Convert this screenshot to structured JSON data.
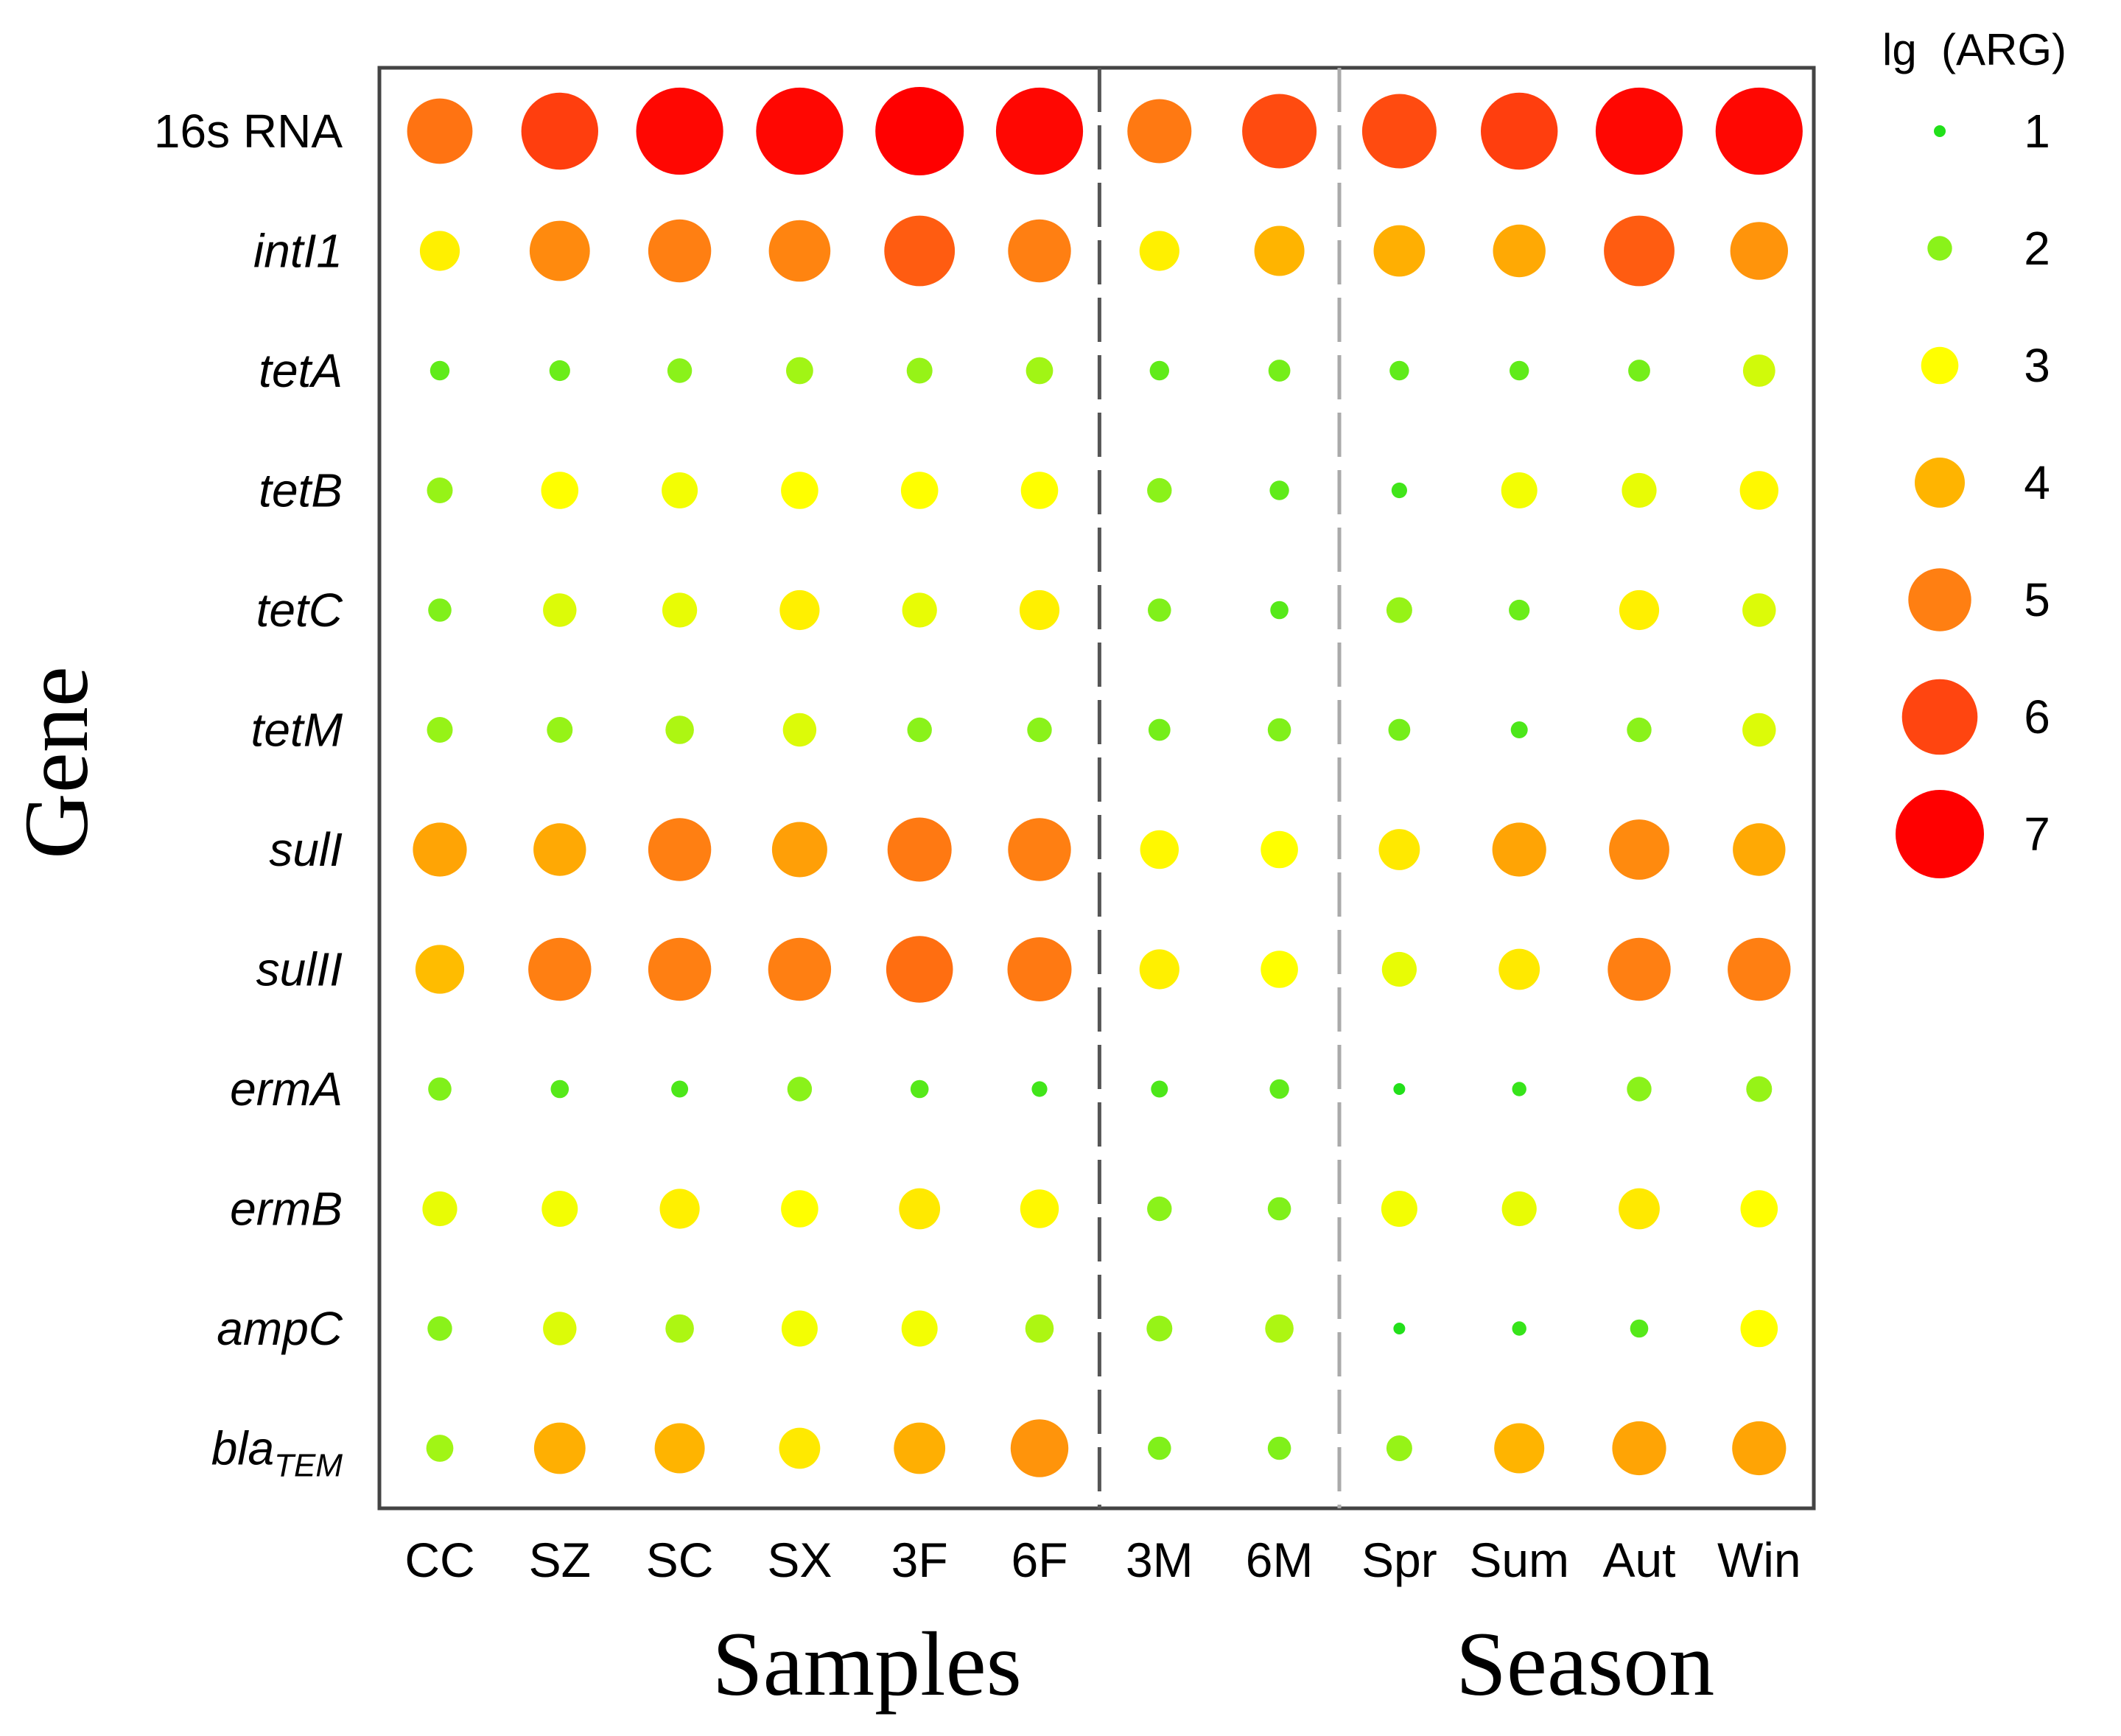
{
  "chart_data": {
    "type": "bubble-matrix",
    "title": "",
    "xlabel_groups": [
      "Samples",
      "Season"
    ],
    "ylabel": "Gene",
    "legend_title": "lg  (ARG)",
    "legend_levels": [
      1,
      2,
      3,
      4,
      5,
      6,
      7
    ],
    "color_scale": [
      "#22e01a",
      "#8af21a",
      "#ffff00",
      "#ffb400",
      "#ff7f12",
      "#ff4510",
      "#ff0000"
    ],
    "columns": [
      "CC",
      "SZ",
      "SC",
      "SX",
      "3F",
      "6F",
      "3M",
      "6M",
      "Spr",
      "Sum",
      "Aut",
      "Win"
    ],
    "rows": [
      {
        "gene": "16s RNA",
        "italic": false,
        "sub": "",
        "values": [
          5.2,
          6.1,
          6.9,
          6.9,
          7.0,
          6.9,
          5.1,
          5.9,
          5.9,
          6.1,
          6.9,
          6.9
        ]
      },
      {
        "gene": "intI1",
        "italic": true,
        "sub": "",
        "values": [
          3.2,
          4.8,
          5.0,
          4.9,
          5.6,
          5.0,
          3.2,
          4.0,
          4.1,
          4.2,
          5.6,
          4.6
        ]
      },
      {
        "gene": "tetA",
        "italic": true,
        "sub": "",
        "values": [
          1.6,
          1.7,
          2.0,
          2.2,
          2.1,
          2.2,
          1.6,
          1.8,
          1.6,
          1.6,
          1.8,
          2.6
        ]
      },
      {
        "gene": "tetB",
        "italic": true,
        "sub": "",
        "values": [
          2.1,
          3.0,
          2.9,
          3.0,
          3.0,
          3.0,
          2.0,
          1.6,
          1.3,
          2.9,
          2.8,
          3.1
        ]
      },
      {
        "gene": "tetC",
        "italic": true,
        "sub": "",
        "values": [
          1.9,
          2.7,
          2.8,
          3.2,
          2.8,
          3.2,
          1.9,
          1.5,
          2.1,
          1.7,
          3.2,
          2.7
        ]
      },
      {
        "gene": "tetM",
        "italic": true,
        "sub": "",
        "values": [
          2.1,
          2.1,
          2.3,
          2.7,
          2.0,
          2.0,
          1.8,
          1.9,
          1.8,
          1.4,
          2.0,
          2.7
        ]
      },
      {
        "gene": "sulI",
        "italic": true,
        "sub": "",
        "values": [
          4.3,
          4.2,
          5.0,
          4.4,
          5.1,
          5.0,
          3.1,
          3.0,
          3.3,
          4.3,
          4.8,
          4.2
        ]
      },
      {
        "gene": "sulII",
        "italic": true,
        "sub": "",
        "values": [
          3.9,
          5.0,
          5.0,
          5.0,
          5.3,
          5.1,
          3.2,
          3.0,
          2.8,
          3.3,
          5.0,
          5.0
        ]
      },
      {
        "gene": "ermA",
        "italic": true,
        "sub": "",
        "values": [
          1.9,
          1.5,
          1.4,
          2.0,
          1.5,
          1.3,
          1.4,
          1.6,
          0.9,
          1.2,
          2.0,
          2.1
        ]
      },
      {
        "gene": "ermB",
        "italic": true,
        "sub": "",
        "values": [
          2.8,
          2.9,
          3.2,
          3.0,
          3.3,
          3.1,
          2.0,
          1.9,
          2.9,
          2.8,
          3.3,
          3.0
        ]
      },
      {
        "gene": "ampC",
        "italic": true,
        "sub": "",
        "values": [
          2.0,
          2.7,
          2.3,
          2.9,
          2.9,
          2.3,
          2.1,
          2.3,
          0.8,
          1.2,
          1.5,
          3.0
        ]
      },
      {
        "gene": "bla",
        "italic": true,
        "sub": "TEM",
        "values": [
          2.2,
          4.1,
          4.0,
          3.3,
          4.1,
          4.6,
          1.9,
          1.9,
          2.1,
          4.0,
          4.3,
          4.3
        ]
      }
    ]
  }
}
